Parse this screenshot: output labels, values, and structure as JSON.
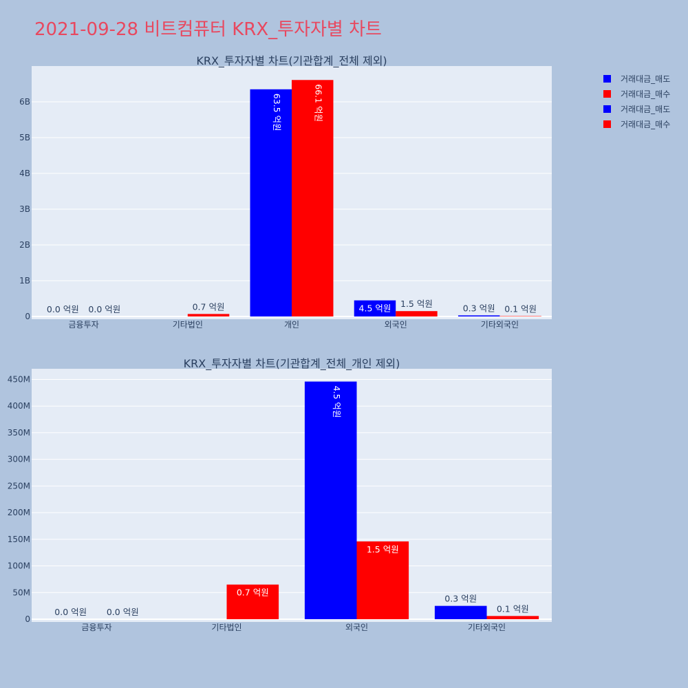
{
  "page_title": "2021-09-28 비트컴퓨터 KRX_투자자별 차트",
  "colors": {
    "background": "#b0c4de",
    "plot_bg": "#e5ecf6",
    "title": "#e8485f",
    "sell": "#0000ff",
    "buy": "#ff0000",
    "text": "#2a3f5f"
  },
  "legend": {
    "items": [
      "거래대금_매도",
      "거래대금_매수",
      "거래대금_매도",
      "거래대금_매수"
    ]
  },
  "chart_data": [
    {
      "type": "bar",
      "title": "KRX_투자자별 차트(기관합계_전체 제외)",
      "categories": [
        "금융투자",
        "기타법인",
        "개인",
        "외국인",
        "기타외국인"
      ],
      "series": [
        {
          "name": "거래대금_매도",
          "values": [
            0,
            0,
            6350000000,
            450000000,
            30000000
          ],
          "labels": [
            "0.0 억원",
            "",
            "63.5 억원",
            "4.5 억원",
            "0.3 억원"
          ]
        },
        {
          "name": "거래대금_매수",
          "values": [
            0,
            70000000,
            6610000000,
            150000000,
            10000000
          ],
          "labels": [
            "0.0 억원",
            "0.7 억원",
            "66.1 억원",
            "1.5 억원",
            "0.1 억원"
          ]
        }
      ],
      "ylim": [
        0,
        7000000000
      ],
      "yticks": [
        0,
        1000000000,
        2000000000,
        3000000000,
        4000000000,
        5000000000,
        6000000000
      ],
      "ytick_labels": [
        "0",
        "1B",
        "2B",
        "3B",
        "4B",
        "5B",
        "6B"
      ],
      "legend_position": "top-right",
      "grid": true
    },
    {
      "type": "bar",
      "title": "KRX_투자자별 차트(기관합계_전체_개인 제외)",
      "categories": [
        "금융투자",
        "기타법인",
        "외국인",
        "기타외국인"
      ],
      "series": [
        {
          "name": "거래대금_매도",
          "values": [
            0,
            0,
            446000000,
            25000000
          ],
          "labels": [
            "0.0 억원",
            "",
            "4.5 억원",
            "0.3 억원"
          ]
        },
        {
          "name": "거래대금_매수",
          "values": [
            0,
            65000000,
            146000000,
            6000000
          ],
          "labels": [
            "0.0 억원",
            "0.7 억원",
            "1.5 억원",
            "0.1 억원"
          ]
        }
      ],
      "ylim": [
        0,
        470000000
      ],
      "yticks": [
        0,
        50000000,
        100000000,
        150000000,
        200000000,
        250000000,
        300000000,
        350000000,
        400000000,
        450000000
      ],
      "ytick_labels": [
        "0",
        "50M",
        "100M",
        "150M",
        "200M",
        "250M",
        "300M",
        "350M",
        "400M",
        "450M"
      ],
      "grid": true
    }
  ]
}
